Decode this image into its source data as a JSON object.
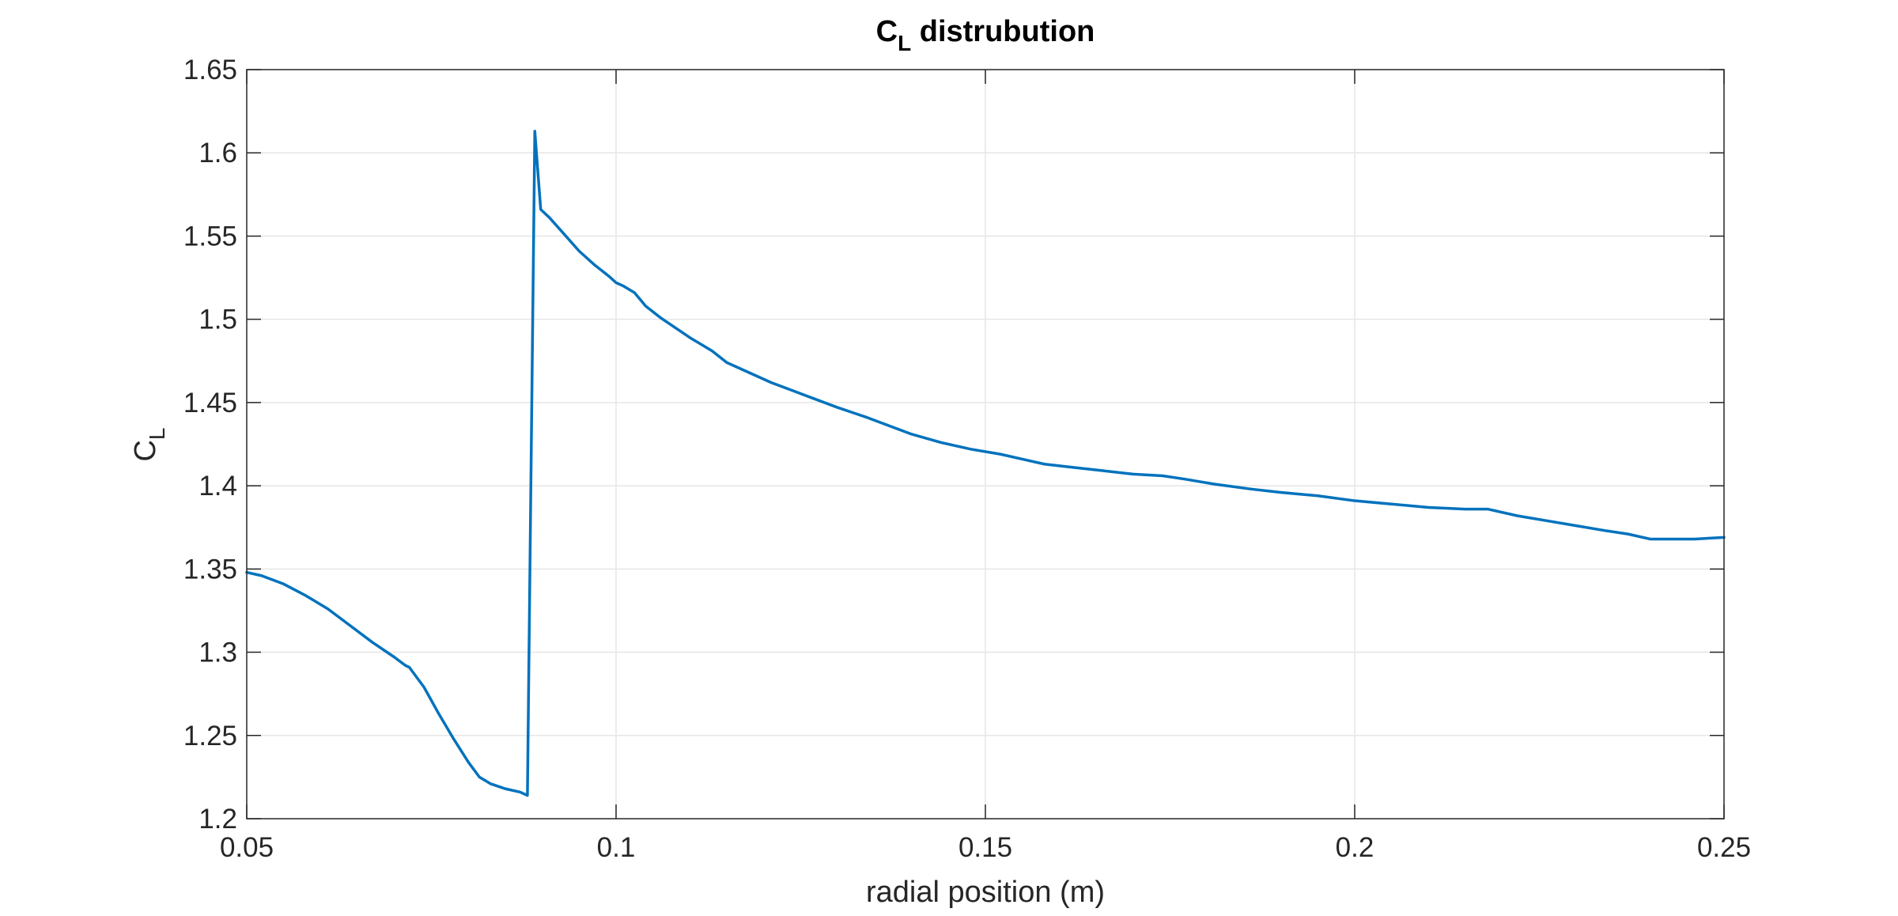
{
  "chart_data": {
    "type": "line",
    "title": {
      "main": "C",
      "sub": "L",
      "rest": "distrubution"
    },
    "xlabel": "radial position (m)",
    "ylabel": {
      "main": "C",
      "sub": "L"
    },
    "xlim": [
      0.05,
      0.25
    ],
    "ylim": [
      1.2,
      1.65
    ],
    "xticks": [
      0.05,
      0.1,
      0.15,
      0.2,
      0.25
    ],
    "xtick_labels": [
      "0.05",
      "0.1",
      "0.15",
      "0.2",
      "0.25"
    ],
    "yticks": [
      1.2,
      1.25,
      1.3,
      1.35,
      1.4,
      1.45,
      1.5,
      1.55,
      1.6,
      1.65
    ],
    "ytick_labels": [
      "1.2",
      "1.25",
      "1.3",
      "1.35",
      "1.4",
      "1.45",
      "1.5",
      "1.55",
      "1.6",
      "1.65"
    ],
    "grid": true,
    "line_color": "#0072BD",
    "series": [
      {
        "x": [
          0.05,
          0.052,
          0.055,
          0.058,
          0.061,
          0.064,
          0.067,
          0.07,
          0.0715,
          0.072,
          0.074,
          0.076,
          0.078,
          0.08,
          0.0815,
          0.083,
          0.085,
          0.087,
          0.088,
          0.089,
          0.0898,
          0.091,
          0.093,
          0.095,
          0.097,
          0.099,
          0.1,
          0.101,
          0.1025,
          0.104,
          0.106,
          0.108,
          0.11,
          0.113,
          0.115,
          0.118,
          0.121,
          0.124,
          0.127,
          0.13,
          0.132,
          0.134,
          0.137,
          0.14,
          0.144,
          0.148,
          0.152,
          0.155,
          0.158,
          0.162,
          0.166,
          0.17,
          0.174,
          0.177,
          0.181,
          0.186,
          0.19,
          0.195,
          0.2,
          0.205,
          0.21,
          0.215,
          0.218,
          0.222,
          0.226,
          0.23,
          0.234,
          0.237,
          0.24,
          0.243,
          0.246,
          0.25
        ],
        "y": [
          1.348,
          1.346,
          1.341,
          1.334,
          1.326,
          1.316,
          1.306,
          1.297,
          1.292,
          1.291,
          1.279,
          1.263,
          1.248,
          1.234,
          1.225,
          1.221,
          1.218,
          1.216,
          1.214,
          1.613,
          1.566,
          1.561,
          1.551,
          1.541,
          1.533,
          1.526,
          1.522,
          1.52,
          1.516,
          1.508,
          1.501,
          1.495,
          1.489,
          1.481,
          1.474,
          1.468,
          1.462,
          1.457,
          1.452,
          1.447,
          1.444,
          1.441,
          1.436,
          1.431,
          1.426,
          1.422,
          1.419,
          1.416,
          1.413,
          1.411,
          1.409,
          1.407,
          1.406,
          1.404,
          1.401,
          1.398,
          1.396,
          1.394,
          1.391,
          1.389,
          1.387,
          1.386,
          1.386,
          1.382,
          1.379,
          1.376,
          1.373,
          1.371,
          1.368,
          1.368,
          1.368,
          1.369
        ]
      }
    ]
  }
}
